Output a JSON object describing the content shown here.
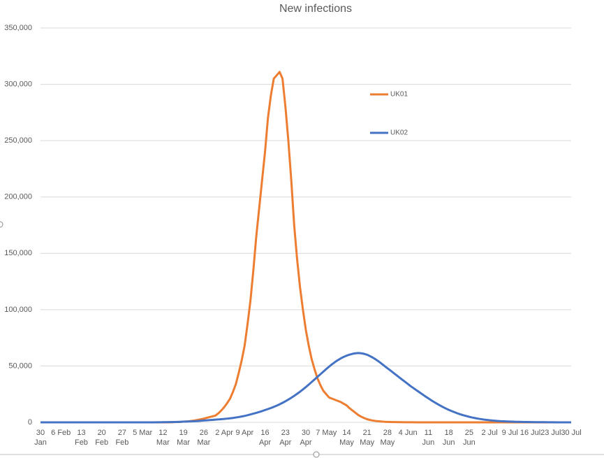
{
  "chart_data": {
    "type": "line",
    "title": "New infections",
    "categories": [
      "30 Jan",
      null,
      null,
      null,
      null,
      null,
      null,
      "6 Feb",
      null,
      null,
      null,
      null,
      null,
      null,
      "13 Feb",
      null,
      null,
      null,
      null,
      null,
      null,
      "20 Feb",
      null,
      null,
      null,
      null,
      null,
      null,
      "27 Feb",
      null,
      null,
      null,
      null,
      null,
      null,
      "5 Mar",
      null,
      null,
      null,
      null,
      null,
      null,
      "12 Mar",
      null,
      null,
      null,
      null,
      null,
      null,
      "19 Mar",
      null,
      null,
      null,
      null,
      null,
      null,
      "26 Mar",
      null,
      null,
      null,
      null,
      null,
      null,
      "2 Apr",
      null,
      null,
      null,
      null,
      null,
      null,
      "9 Apr",
      null,
      null,
      null,
      null,
      null,
      null,
      "16 Apr",
      null,
      null,
      null,
      null,
      null,
      null,
      "23 Apr",
      null,
      null,
      null,
      null,
      null,
      null,
      "30 Apr",
      null,
      null,
      null,
      null,
      null,
      null,
      "7 May",
      null,
      null,
      null,
      null,
      null,
      null,
      "14 May",
      null,
      null,
      null,
      null,
      null,
      null,
      "21 May",
      null,
      null,
      null,
      null,
      null,
      null,
      "28 May",
      null,
      null,
      null,
      null,
      null,
      null,
      "4 Jun",
      null,
      null,
      null,
      null,
      null,
      null,
      "11 Jun",
      null,
      null,
      null,
      null,
      null,
      null,
      "18 Jun",
      null,
      null,
      null,
      null,
      null,
      null,
      "25 Jun",
      null,
      null,
      null,
      null,
      null,
      null,
      "2 Jul",
      null,
      null,
      null,
      null,
      null,
      null,
      "9 Jul",
      null,
      null,
      null,
      null,
      null,
      null,
      "16 Jul",
      null,
      null,
      null,
      null,
      null,
      null,
      "23 Jul",
      null,
      null,
      null,
      null,
      null,
      null,
      "30 Jul"
    ],
    "series": [
      {
        "name": "UK01",
        "color": "#ed7d31",
        "values": [
          0,
          0,
          0,
          0,
          0,
          0,
          0,
          0,
          0,
          0,
          0,
          0,
          0,
          0,
          0,
          0,
          0,
          0,
          0,
          0,
          0,
          0,
          0,
          0,
          0,
          0,
          0,
          0,
          0,
          0,
          0,
          0,
          0,
          0,
          0,
          0,
          0,
          0,
          0,
          0,
          0,
          0,
          0,
          0,
          0,
          100,
          200,
          300,
          400,
          600,
          800,
          1000,
          1300,
          1700,
          2200,
          2700,
          3300,
          4000,
          4700,
          5300,
          6000,
          8000,
          10500,
          13500,
          17000,
          21000,
          27000,
          34000,
          44000,
          55000,
          68000,
          87000,
          108000,
          135000,
          165000,
          190000,
          215000,
          240000,
          270000,
          290000,
          305000,
          308000,
          311000,
          305000,
          280000,
          250000,
          215000,
          175000,
          145000,
          120000,
          100000,
          82000,
          68000,
          56000,
          47000,
          39000,
          33000,
          28000,
          25000,
          22000,
          21000,
          20000,
          19000,
          18000,
          16500,
          15000,
          12500,
          10500,
          8500,
          6500,
          5000,
          3800,
          2800,
          2100,
          1600,
          1200,
          900,
          700,
          500,
          400,
          300,
          250,
          200,
          150,
          120,
          100,
          80,
          60,
          50,
          40,
          30,
          20,
          10,
          0,
          0,
          0,
          0,
          0,
          0,
          0,
          0,
          0,
          0,
          0,
          0,
          0,
          0,
          0,
          0,
          0,
          0,
          0,
          0,
          0,
          0,
          0,
          0,
          0,
          0,
          0,
          0,
          0,
          0,
          0,
          0,
          0,
          0,
          0,
          0,
          0,
          0,
          0,
          0,
          0,
          0,
          0,
          0,
          0,
          0,
          0,
          0,
          0,
          0
        ]
      },
      {
        "name": "UK02",
        "color": "#4472c4",
        "values": [
          0,
          0,
          0,
          0,
          0,
          0,
          0,
          0,
          0,
          0,
          0,
          0,
          0,
          0,
          0,
          0,
          0,
          0,
          0,
          0,
          0,
          0,
          0,
          0,
          0,
          0,
          0,
          0,
          0,
          0,
          0,
          0,
          0,
          0,
          0,
          0,
          0,
          0,
          0,
          0,
          50,
          80,
          120,
          160,
          200,
          250,
          300,
          400,
          500,
          600,
          700,
          800,
          900,
          1000,
          1200,
          1400,
          1600,
          1800,
          2000,
          2200,
          2400,
          2600,
          2800,
          3000,
          3300,
          3600,
          3900,
          4300,
          4700,
          5200,
          5700,
          6300,
          7000,
          7700,
          8400,
          9200,
          10000,
          10900,
          11800,
          12700,
          13700,
          14800,
          16000,
          17300,
          18700,
          20200,
          21800,
          23500,
          25300,
          27200,
          29200,
          31300,
          33500,
          35800,
          38100,
          40400,
          42700,
          45000,
          47300,
          49500,
          51600,
          53500,
          55200,
          56800,
          58100,
          59200,
          60100,
          60800,
          61300,
          61500,
          61300,
          60800,
          60000,
          58800,
          57400,
          55800,
          54000,
          52000,
          50000,
          48000,
          46000,
          44000,
          42000,
          40000,
          38000,
          36000,
          34000,
          32000,
          30200,
          28400,
          26600,
          24800,
          23000,
          21300,
          19600,
          18000,
          16500,
          15000,
          13600,
          12300,
          11100,
          10000,
          9000,
          8000,
          7100,
          6300,
          5600,
          4900,
          4300,
          3800,
          3300,
          2900,
          2500,
          2200,
          1900,
          1600,
          1400,
          1200,
          1000,
          900,
          800,
          700,
          600,
          500,
          450,
          400,
          350,
          300,
          250,
          200,
          180,
          160,
          140,
          120,
          100,
          80,
          60,
          40,
          30,
          20,
          10,
          0,
          0
        ]
      }
    ],
    "ylim": [
      0,
      350000
    ],
    "yticks": [
      0,
      {
        "value": 50000,
        "label": "50,000"
      },
      {
        "value": 100000,
        "label": "100,000"
      },
      {
        "value": 150000,
        "label": "150,000"
      },
      {
        "value": 200000,
        "label": "200,000"
      },
      {
        "value": 250000,
        "label": "250,000"
      },
      {
        "value": 300000,
        "label": "300,000"
      },
      {
        "value": 350000,
        "label": "350,000"
      }
    ],
    "grid": true,
    "legend": "right"
  }
}
